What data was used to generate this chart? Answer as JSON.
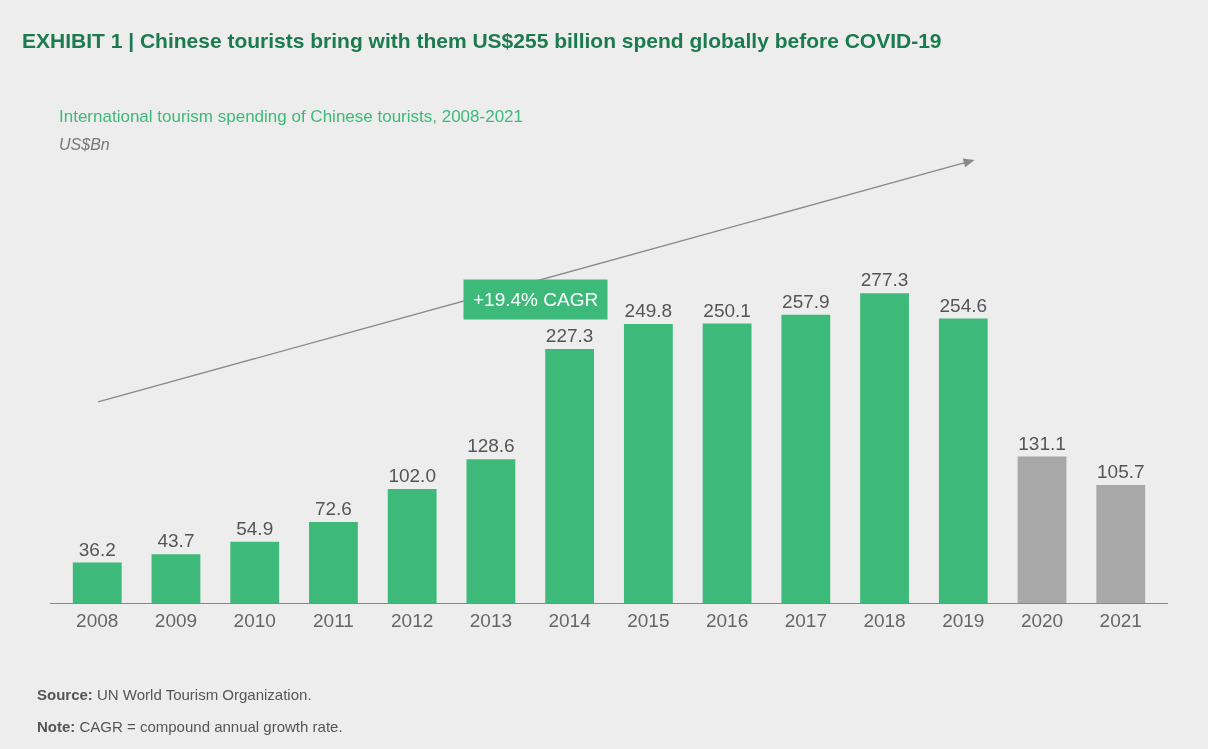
{
  "chart_data": {
    "type": "bar",
    "title": "EXHIBIT 1 | Chinese tourists bring with them US$255 billion spend globally before COVID-19",
    "subtitle": "International tourism spending of Chinese tourists, 2008-2021",
    "categories": [
      "2008",
      "2009",
      "2010",
      "2011",
      "2012",
      "2013",
      "2014",
      "2015",
      "2016",
      "2017",
      "2018",
      "2019",
      "2020",
      "2021"
    ],
    "values": [
      36.2,
      43.7,
      54.9,
      72.6,
      102.0,
      128.6,
      227.3,
      249.8,
      250.1,
      257.9,
      277.3,
      254.6,
      131.1,
      105.7
    ],
    "value_labels": [
      "36.2",
      "43.7",
      "54.9",
      "72.6",
      "102.0",
      "128.6",
      "227.3",
      "249.8",
      "250.1",
      "257.9",
      "277.3",
      "254.6",
      "131.1",
      "105.7"
    ],
    "colors": [
      "#3dba7a",
      "#3dba7a",
      "#3dba7a",
      "#3dba7a",
      "#3dba7a",
      "#3dba7a",
      "#3dba7a",
      "#3dba7a",
      "#3dba7a",
      "#3dba7a",
      "#3dba7a",
      "#3dba7a",
      "#a8a8a8",
      "#a8a8a8"
    ],
    "grid": false,
    "legend": false,
    "annotations": [
      "US$Bn",
      "+19.4% CAGR",
      "Source: UN World Tourism Organization.",
      "Note: CAGR = compound annual growth rate."
    ]
  }
}
